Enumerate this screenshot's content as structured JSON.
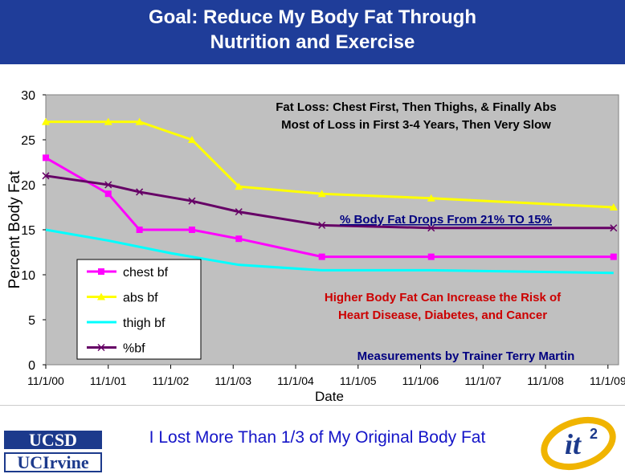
{
  "slide": {
    "title_line1": "Goal: Reduce My Body Fat Through",
    "title_line2": "Nutrition and Exercise",
    "footer": "I Lost More Than 1/3 of My Original Body Fat",
    "logo_ucsd": "UCSD",
    "logo_uci": "UCIrvine",
    "logo_it2": "it",
    "logo_it2_sup": "2"
  },
  "chart_data": {
    "type": "line",
    "xlabel": "Date",
    "ylabel": "Percent Body Fat",
    "ylim": [
      0,
      30
    ],
    "y_ticks": [
      "0",
      "5",
      "10",
      "15",
      "20",
      "25",
      "30"
    ],
    "x_tick_labels": [
      "11/1/00",
      "11/1/01",
      "11/1/02",
      "11/1/03",
      "11/1/04",
      "11/1/05",
      "11/1/06",
      "11/1/07",
      "11/1/08",
      "11/1/09"
    ],
    "x_range_years": [
      2000.83,
      2010.0
    ],
    "grid": false,
    "legend_position": "bottom-left",
    "colors": {
      "plot_bg": "#c0c0c0",
      "chest": "#ff00ff",
      "abs": "#ffff00",
      "thigh": "#00ffff",
      "pbf": "#660066"
    },
    "series": [
      {
        "name": "chest bf",
        "marker": "square",
        "points": [
          [
            2000.83,
            23
          ],
          [
            2001.83,
            19
          ],
          [
            2002.33,
            15
          ],
          [
            2003.17,
            15
          ],
          [
            2003.92,
            14
          ],
          [
            2005.25,
            12
          ],
          [
            2007.0,
            12
          ],
          [
            2009.92,
            12
          ]
        ]
      },
      {
        "name": "abs bf",
        "marker": "triangle",
        "points": [
          [
            2000.83,
            27
          ],
          [
            2001.83,
            27
          ],
          [
            2002.33,
            27
          ],
          [
            2003.17,
            25
          ],
          [
            2003.92,
            19.8
          ],
          [
            2005.25,
            19
          ],
          [
            2007.0,
            18.5
          ],
          [
            2009.92,
            17.5
          ]
        ]
      },
      {
        "name": "thigh bf",
        "marker": "none",
        "points": [
          [
            2000.83,
            15
          ],
          [
            2001.83,
            13.8
          ],
          [
            2002.83,
            12.4
          ],
          [
            2003.92,
            11.1
          ],
          [
            2005.25,
            10.5
          ],
          [
            2007.0,
            10.5
          ],
          [
            2009.92,
            10.2
          ]
        ]
      },
      {
        "name": "%bf",
        "marker": "x",
        "points": [
          [
            2000.83,
            21
          ],
          [
            2001.83,
            20
          ],
          [
            2002.33,
            19.2
          ],
          [
            2003.17,
            18.2
          ],
          [
            2003.92,
            17
          ],
          [
            2005.25,
            15.5
          ],
          [
            2007.0,
            15.2
          ],
          [
            2009.92,
            15.2
          ]
        ]
      }
    ],
    "annotations": [
      {
        "lines": [
          "Fat Loss: Chest First, Then Thighs, & Finally Abs",
          "Most of Loss in First 3-4 Years, Then Very Slow"
        ],
        "color": "#000000",
        "underline": false
      },
      {
        "lines": [
          "% Body Fat Drops From 21% TO 15%"
        ],
        "color": "#000080",
        "underline": true
      },
      {
        "lines": [
          "Higher Body Fat Can Increase the Risk of",
          "Heart Disease, Diabetes, and Cancer"
        ],
        "color": "#cc0000",
        "underline": false
      },
      {
        "lines": [
          "Measurements by Trainer Terry Martin"
        ],
        "color": "#000080",
        "underline": false
      }
    ]
  }
}
